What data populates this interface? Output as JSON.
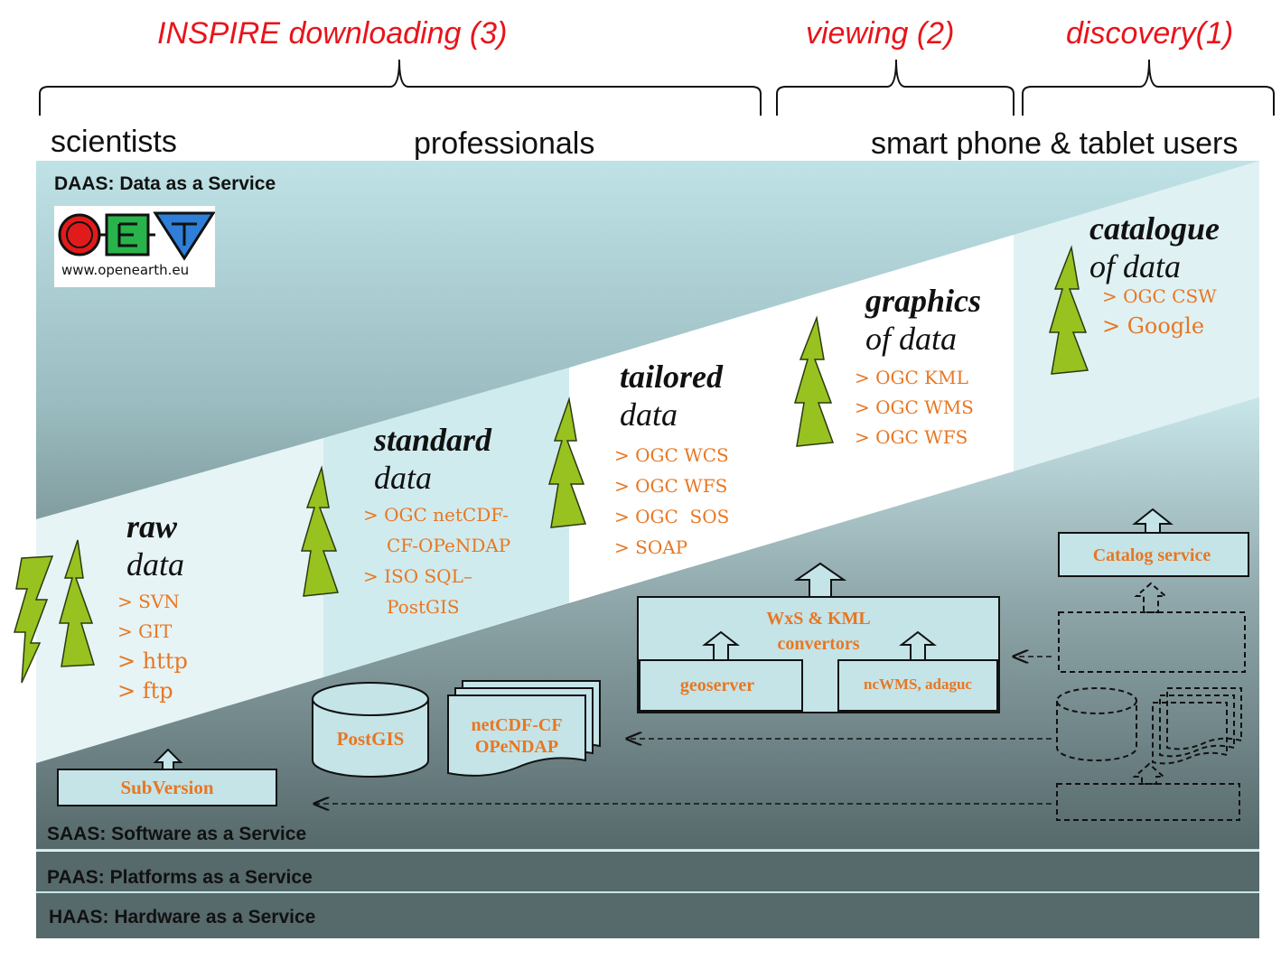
{
  "top_titles": {
    "downloading": "INSPIRE downloading (3)",
    "viewing": "viewing (2)",
    "discovery": "discovery(1)"
  },
  "audiences": {
    "scientists": "scientists",
    "professionals": "professionals",
    "mobile": "smart phone & tablet users"
  },
  "layers": {
    "daas": "DAAS: Data as a Service",
    "saas": "SAAS: Software as a Service",
    "paas": "PAAS: Platforms as a Service",
    "haas": "HAAS: Hardware as a Service"
  },
  "logo": {
    "url_text": "www.openearth.eu"
  },
  "stages": [
    {
      "bold": "raw",
      "ital": "data",
      "services": [
        "> SVN",
        "> GIT",
        "> http",
        "> ftp"
      ]
    },
    {
      "bold": "standard",
      "ital": "data",
      "services": [
        "> OGC netCDF-",
        "CF-OPeNDAP",
        "> ISO SQL–",
        "PostGIS"
      ]
    },
    {
      "bold": "tailored",
      "ital": "data",
      "services": [
        "> OGC WCS",
        "> OGC WFS",
        "> OGC  SOS",
        "> SOAP"
      ]
    },
    {
      "bold": "graphics",
      "ital": "of data",
      "services": [
        "> OGC KML",
        "> OGC WMS",
        "> OGC WFS"
      ]
    },
    {
      "bold": "catalogue",
      "ital": "of data",
      "services": [
        "> OGC CSW",
        "> Google"
      ]
    }
  ],
  "components": {
    "subversion": "SubVersion",
    "postgis": "PostGIS",
    "netcdf_line1": "netCDF-CF",
    "netcdf_line2": "OPeNDAP",
    "wxs_line1": "WxS & KML",
    "wxs_line2": "convertors",
    "geoserver": "geoserver",
    "ncwms": "ncWMS, adaguc",
    "catalog": "Catalog service"
  },
  "colors": {
    "title_red": "#e8141b",
    "service_orange": "#e87722",
    "band_light": "#bfe2e6",
    "band_dark": "#56696b",
    "box_fill": "#c4e4e8",
    "lightning_green": "#98c21f"
  }
}
